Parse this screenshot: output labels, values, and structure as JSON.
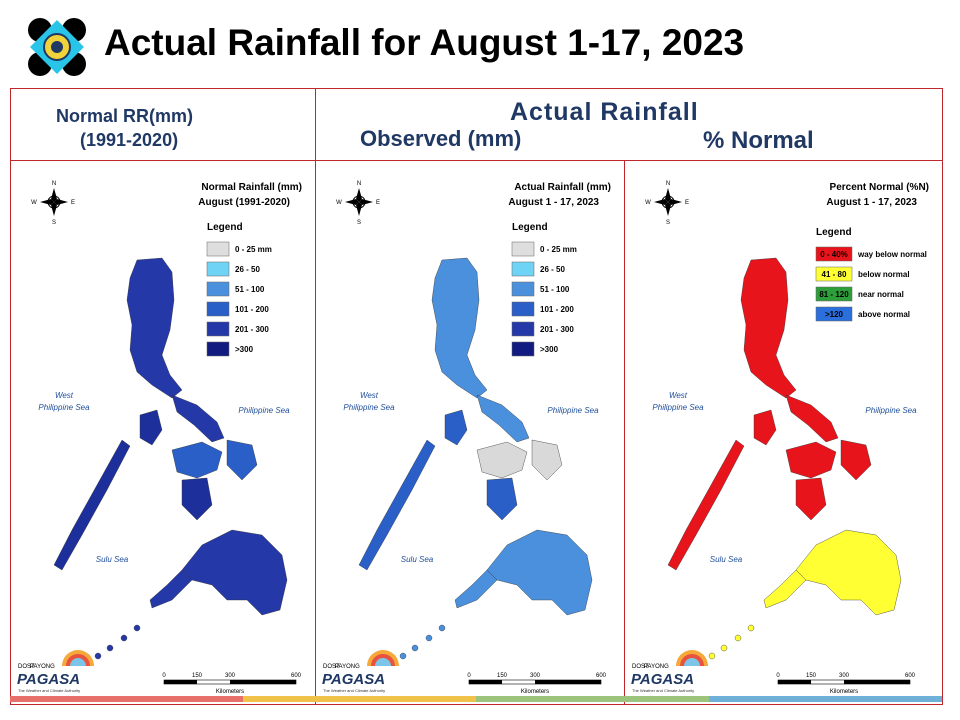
{
  "header": {
    "title": "Actual Rainfall for August 1-17, 2023"
  },
  "columns": {
    "normal_header_line1": "Normal RR(mm)",
    "normal_header_line2": "(1991-2020)",
    "actual_header": "Actual Rainfall",
    "observed_header": "Observed (mm)",
    "percent_header": "% Normal"
  },
  "panels": [
    {
      "title_line1": "Normal Rainfall (mm)",
      "title_line2": "August (1991-2020)",
      "legend_title": "Legend",
      "legend": [
        {
          "label": "0 - 25 mm",
          "color": "#dedede"
        },
        {
          "label": "26 - 50",
          "color": "#6fd3f5"
        },
        {
          "label": "51 - 100",
          "color": "#4a90dc"
        },
        {
          "label": "101 - 200",
          "color": "#2a5fc8"
        },
        {
          "label": "201 - 300",
          "color": "#2438a8"
        },
        {
          "label": ">300",
          "color": "#111b80"
        }
      ],
      "map_colors": {
        "north": "#2438a8",
        "central": "#2a5fc8",
        "south": "#2438a8",
        "west": "#1c2f9a"
      }
    },
    {
      "title_line1": "Actual Rainfall (mm)",
      "title_line2": "August 1 - 17, 2023",
      "legend_title": "Legend",
      "legend": [
        {
          "label": "0 - 25 mm",
          "color": "#dedede"
        },
        {
          "label": "26 - 50",
          "color": "#6fd3f5"
        },
        {
          "label": "51 - 100",
          "color": "#4a90dc"
        },
        {
          "label": "101 - 200",
          "color": "#2a5fc8"
        },
        {
          "label": "201 - 300",
          "color": "#2438a8"
        },
        {
          "label": ">300",
          "color": "#111b80"
        }
      ],
      "map_colors": {
        "north": "#4a90dc",
        "central": "#d9d9d9",
        "south": "#4a90dc",
        "west": "#2a5fc8"
      }
    },
    {
      "title_line1": "Percent Normal (%N)",
      "title_line2": "August 1 - 17, 2023",
      "legend_title": "Legend",
      "legend": [
        {
          "label": "way below normal",
          "range": "0 - 40%",
          "color": "#e8141b"
        },
        {
          "label": "below normal",
          "range": "41 - 80",
          "color": "#ffff33"
        },
        {
          "label": "near normal",
          "range": "81 - 120",
          "color": "#2e9e3a"
        },
        {
          "label": "above normal",
          "range": ">120",
          "color": "#2a6fdc"
        }
      ],
      "map_colors": {
        "north": "#e8141b",
        "central": "#e8141b",
        "south": "#ffff33",
        "west": "#e8141b"
      }
    }
  ],
  "map_labels": {
    "west_sea_line1": "West",
    "west_sea_line2": "Philippine Sea",
    "philippine_sea": "Philippine Sea",
    "sulu_sea": "Sulu Sea",
    "scale_ticks": [
      "0",
      "150",
      "300",
      "600"
    ],
    "scale_unit": "Kilometers",
    "compass": [
      "N",
      "E",
      "S",
      "W"
    ]
  },
  "brand": {
    "logo_text": "PAGASA",
    "logo_top": "DOST",
    "logo_sub": "PAYONG",
    "tagline": "The Weather and Climate Authority"
  },
  "bottom_bar_colors": [
    "#e8706b",
    "#f0c24a",
    "#9cc47c",
    "#6fb0d8"
  ]
}
